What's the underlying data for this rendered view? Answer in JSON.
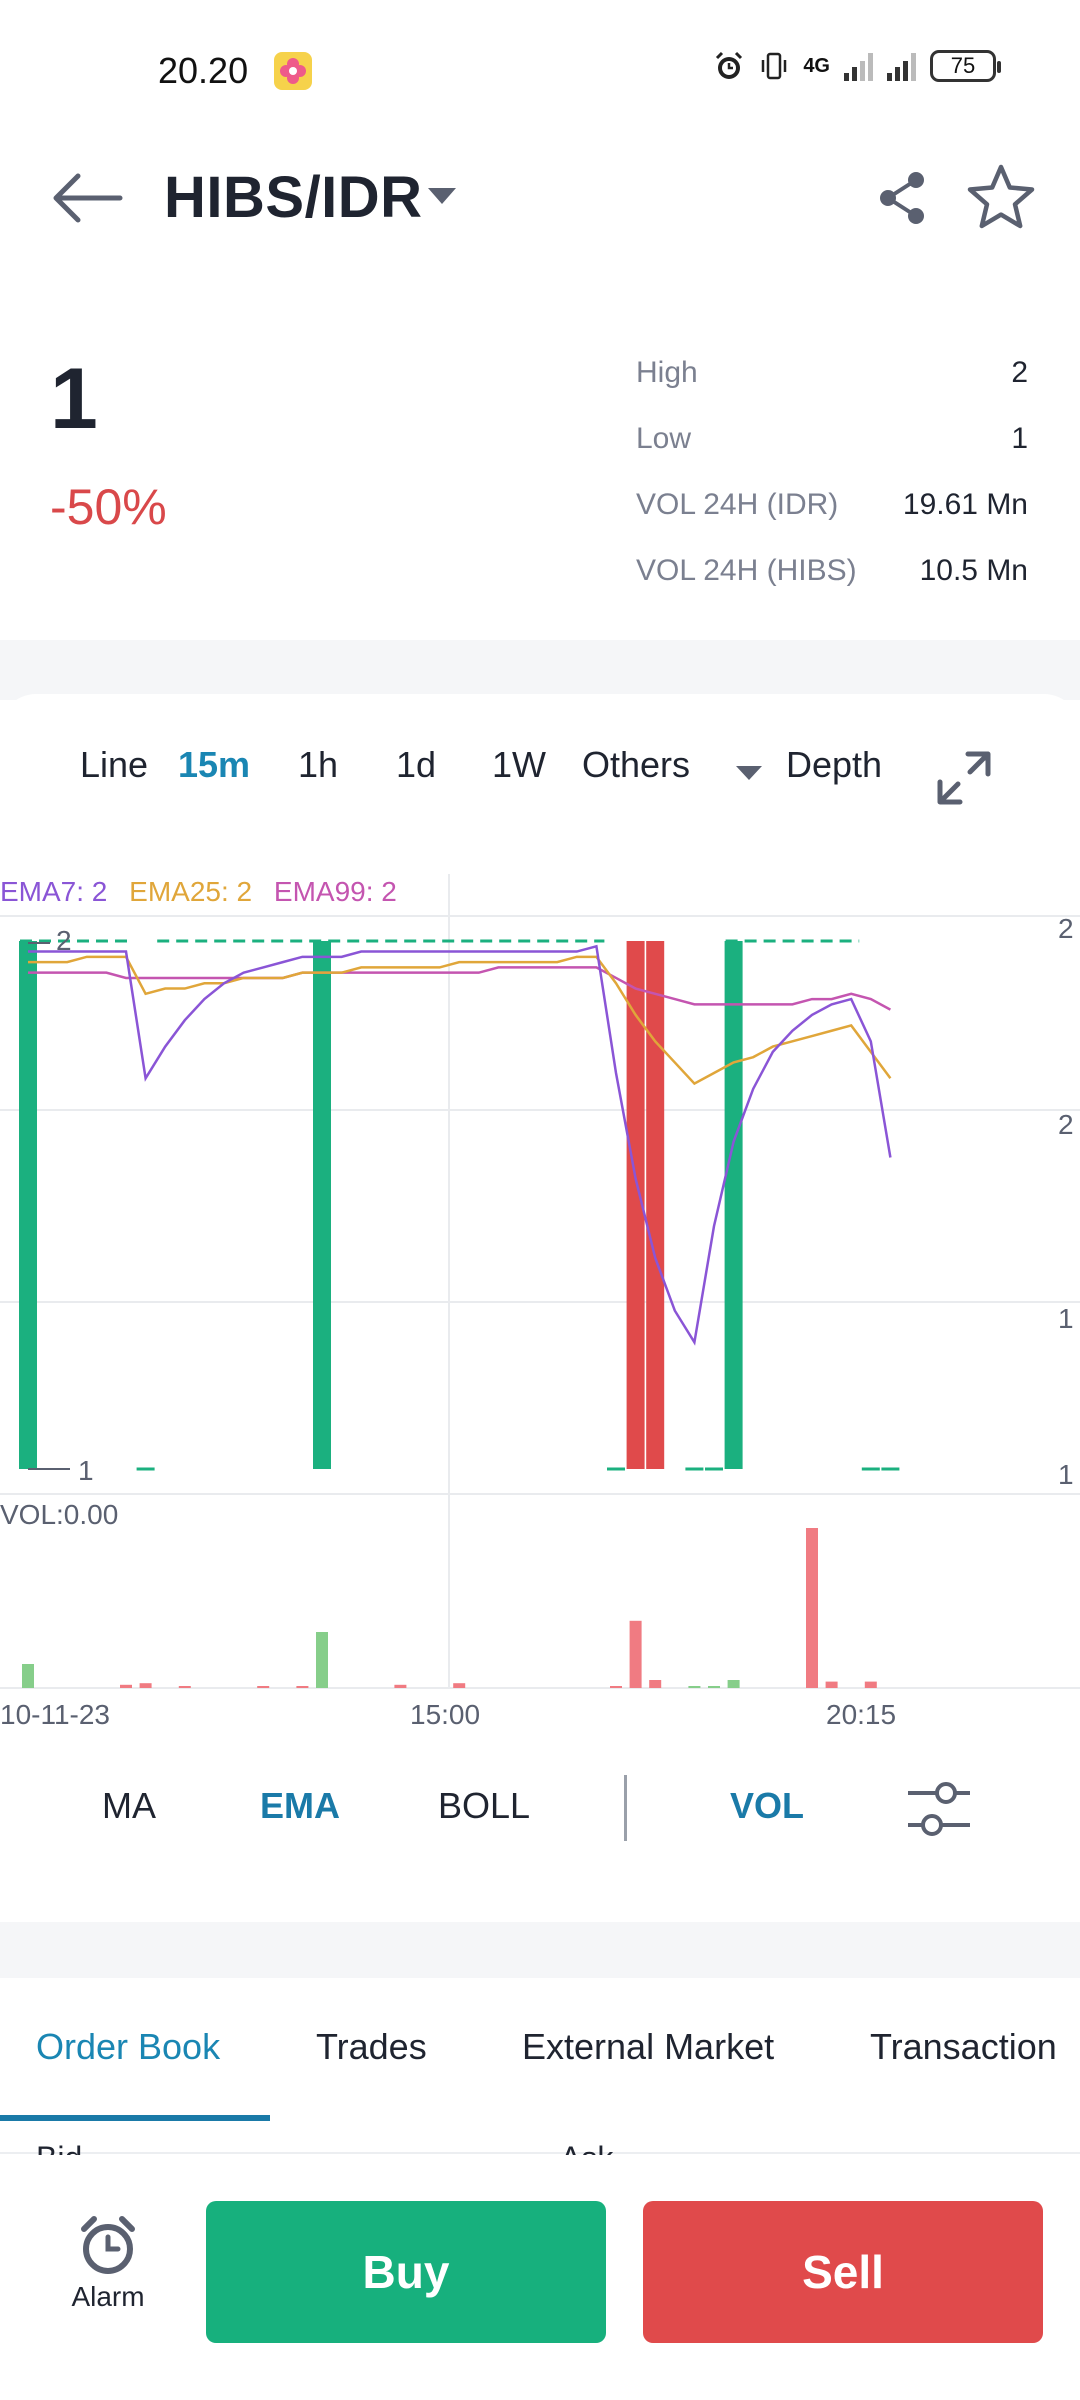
{
  "status_bar": {
    "time": "20.20",
    "network": "4G",
    "battery": "75"
  },
  "header": {
    "pair": "HIBS/IDR",
    "icons": [
      "back-arrow-icon",
      "chevron-down-icon",
      "share-icon",
      "star-icon"
    ]
  },
  "ticker": {
    "price": "1",
    "change": "-50%",
    "stats": [
      {
        "label": "High",
        "value": "2"
      },
      {
        "label": "Low",
        "value": "1"
      },
      {
        "label": "VOL 24H (IDR)",
        "value": "19.61 Mn"
      },
      {
        "label": "VOL 24H (HIBS)",
        "value": "10.5 Mn"
      }
    ]
  },
  "timeframes": {
    "items": [
      "Line",
      "15m",
      "1h",
      "1d",
      "1W",
      "Others",
      "Depth"
    ],
    "active": "15m"
  },
  "ema_legend": [
    {
      "text": "EMA7: 2",
      "color": "#8a55d6"
    },
    {
      "text": "EMA25: 2",
      "color": "#e0a63a"
    },
    {
      "text": "EMA99: 2",
      "color": "#c455b0"
    }
  ],
  "chart_data": {
    "type": "candlestick",
    "price_labels": {
      "high": "2",
      "low": "1"
    },
    "right_axis_ticks": [
      "2",
      "2",
      "1",
      "1"
    ],
    "x_ticks": [
      "10-11-23",
      "15:00",
      "20:15"
    ],
    "volume_label": "VOL:0.00",
    "candles": [
      {
        "i": 0,
        "open": 2,
        "close": 1,
        "color": "green",
        "type": "bar"
      },
      {
        "i": 6,
        "open": 1,
        "close": 1,
        "color": "green",
        "type": "doji"
      },
      {
        "i": 15,
        "open": 2,
        "close": 1,
        "color": "green",
        "type": "bar"
      },
      {
        "i": 30,
        "open": 1,
        "close": 1,
        "color": "green",
        "type": "doji"
      },
      {
        "i": 31,
        "open": 2,
        "close": 1,
        "color": "red",
        "type": "bar"
      },
      {
        "i": 32,
        "open": 2,
        "close": 1,
        "color": "red",
        "type": "bar"
      },
      {
        "i": 34,
        "open": 1,
        "close": 1,
        "color": "green",
        "type": "doji"
      },
      {
        "i": 35,
        "open": 1,
        "close": 1,
        "color": "green",
        "type": "doji"
      },
      {
        "i": 36,
        "open": 2,
        "close": 1,
        "color": "green",
        "type": "bar"
      },
      {
        "i": 43,
        "open": 1,
        "close": 1,
        "color": "green",
        "type": "doji"
      },
      {
        "i": 44,
        "open": 1,
        "close": 1,
        "color": "green",
        "type": "doji"
      }
    ],
    "dashed_top_segments": [
      [
        0,
        5
      ],
      [
        7,
        29
      ],
      [
        36,
        42
      ]
    ],
    "ema7": [
      1.98,
      1.98,
      1.98,
      1.98,
      1.98,
      1.98,
      1.74,
      1.8,
      1.85,
      1.89,
      1.92,
      1.94,
      1.95,
      1.96,
      1.97,
      1.97,
      1.97,
      1.98,
      1.98,
      1.98,
      1.98,
      1.98,
      1.98,
      1.98,
      1.98,
      1.98,
      1.98,
      1.98,
      1.98,
      1.99,
      1.75,
      1.55,
      1.4,
      1.3,
      1.24,
      1.46,
      1.62,
      1.72,
      1.79,
      1.83,
      1.86,
      1.88,
      1.89,
      1.81,
      1.59
    ],
    "ema25": [
      1.96,
      1.96,
      1.96,
      1.97,
      1.97,
      1.97,
      1.9,
      1.91,
      1.91,
      1.92,
      1.92,
      1.93,
      1.93,
      1.93,
      1.94,
      1.94,
      1.94,
      1.95,
      1.95,
      1.95,
      1.95,
      1.95,
      1.96,
      1.96,
      1.96,
      1.96,
      1.96,
      1.96,
      1.97,
      1.97,
      1.92,
      1.86,
      1.81,
      1.77,
      1.73,
      1.75,
      1.77,
      1.78,
      1.8,
      1.81,
      1.82,
      1.83,
      1.84,
      1.79,
      1.74
    ],
    "ema99": [
      1.94,
      1.94,
      1.94,
      1.94,
      1.94,
      1.93,
      1.93,
      1.93,
      1.93,
      1.93,
      1.93,
      1.93,
      1.93,
      1.93,
      1.94,
      1.94,
      1.94,
      1.94,
      1.94,
      1.94,
      1.94,
      1.94,
      1.94,
      1.94,
      1.95,
      1.95,
      1.95,
      1.95,
      1.95,
      1.95,
      1.93,
      1.91,
      1.9,
      1.89,
      1.88,
      1.88,
      1.88,
      1.88,
      1.88,
      1.88,
      1.89,
      1.89,
      1.9,
      1.89,
      1.87
    ],
    "volume": [
      {
        "i": 0,
        "v": 0.15,
        "color": "green"
      },
      {
        "i": 5,
        "v": 0.02,
        "color": "red"
      },
      {
        "i": 6,
        "v": 0.03,
        "color": "red"
      },
      {
        "i": 8,
        "v": 0.01,
        "color": "red"
      },
      {
        "i": 12,
        "v": 0.01,
        "color": "red"
      },
      {
        "i": 14,
        "v": 0.01,
        "color": "red"
      },
      {
        "i": 15,
        "v": 0.35,
        "color": "green"
      },
      {
        "i": 19,
        "v": 0.02,
        "color": "red"
      },
      {
        "i": 22,
        "v": 0.03,
        "color": "red"
      },
      {
        "i": 30,
        "v": 0.01,
        "color": "red"
      },
      {
        "i": 31,
        "v": 0.42,
        "color": "red"
      },
      {
        "i": 32,
        "v": 0.05,
        "color": "red"
      },
      {
        "i": 34,
        "v": 0.01,
        "color": "green"
      },
      {
        "i": 35,
        "v": 0.01,
        "color": "green"
      },
      {
        "i": 36,
        "v": 0.05,
        "color": "green"
      },
      {
        "i": 40,
        "v": 1.0,
        "color": "red"
      },
      {
        "i": 41,
        "v": 0.04,
        "color": "red"
      },
      {
        "i": 43,
        "v": 0.04,
        "color": "red"
      }
    ]
  },
  "indicators": {
    "items": [
      "MA",
      "EMA",
      "BOLL",
      "VOL"
    ],
    "active": [
      "EMA",
      "VOL"
    ]
  },
  "tabs": {
    "items": [
      "Order Book",
      "Trades",
      "External Market",
      "Transaction"
    ],
    "active": "Order Book",
    "peek": [
      "Bid",
      "Ask"
    ]
  },
  "actions": {
    "alarm_label": "Alarm",
    "buy_label": "Buy",
    "sell_label": "Sell"
  },
  "colors": {
    "accent": "#1a86b3",
    "up": "#1bb07f",
    "down": "#e04a4b"
  }
}
